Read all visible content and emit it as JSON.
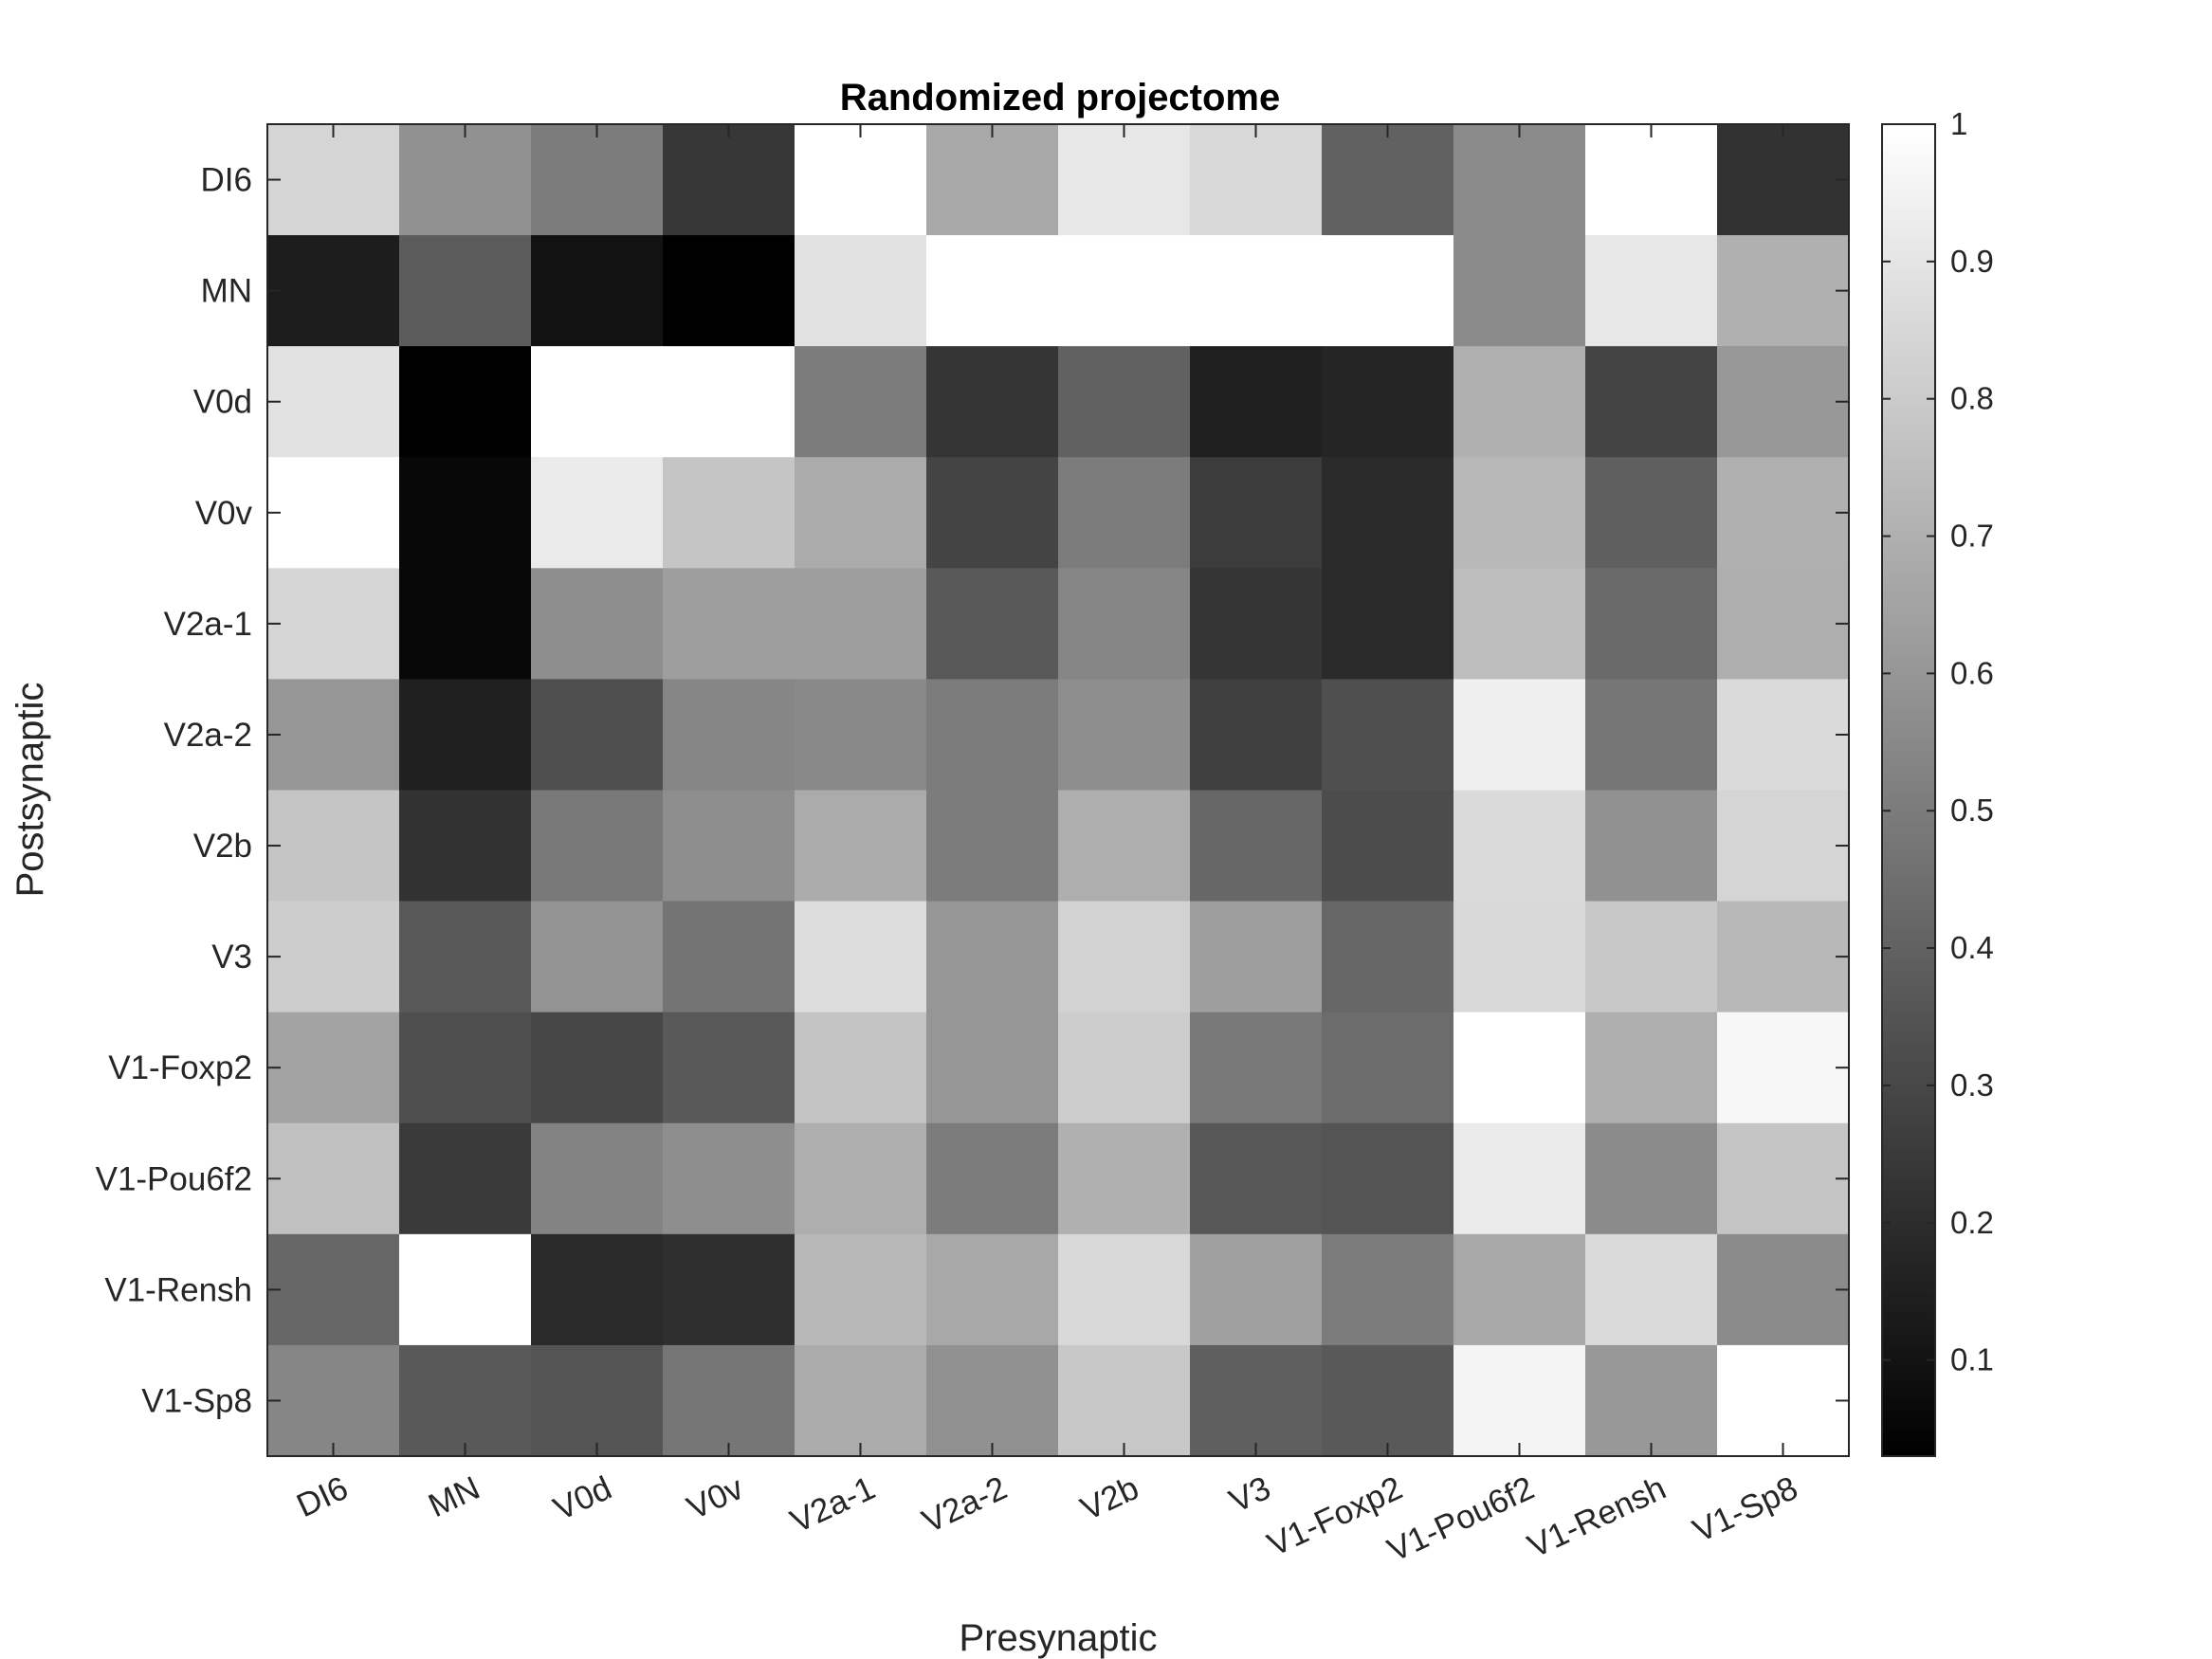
{
  "chart_data": {
    "type": "heatmap",
    "title": "Randomized projectome",
    "xlabel": "Presynaptic",
    "ylabel": "Postsynaptic",
    "x_categories": [
      "DI6",
      "MN",
      "V0d",
      "V0v",
      "V2a-1",
      "V2a-2",
      "V2b",
      "V3",
      "V1-Foxp2",
      "V1-Pou6f2",
      "V1-Rensh",
      "V1-Sp8"
    ],
    "y_categories": [
      "DI6",
      "MN",
      "V0d",
      "V0v",
      "V2a-1",
      "V2a-2",
      "V2b",
      "V3",
      "V1-Foxp2",
      "V1-Pou6f2",
      "V1-Rensh",
      "V1-Sp8"
    ],
    "values": [
      [
        0.84,
        0.58,
        0.5,
        0.24,
        1.0,
        0.67,
        0.91,
        0.85,
        0.4,
        0.56,
        1.0,
        0.22
      ],
      [
        0.14,
        0.38,
        0.1,
        0.03,
        0.89,
        1.0,
        1.0,
        1.0,
        1.0,
        0.56,
        0.91,
        0.7
      ],
      [
        0.89,
        0.03,
        1.0,
        1.0,
        0.5,
        0.23,
        0.4,
        0.15,
        0.17,
        0.7,
        0.29,
        0.61
      ],
      [
        1.0,
        0.06,
        0.92,
        0.78,
        0.68,
        0.29,
        0.5,
        0.26,
        0.19,
        0.73,
        0.39,
        0.7
      ],
      [
        0.84,
        0.06,
        0.57,
        0.63,
        0.63,
        0.37,
        0.54,
        0.23,
        0.19,
        0.75,
        0.43,
        0.69
      ],
      [
        0.6,
        0.15,
        0.33,
        0.54,
        0.55,
        0.5,
        0.57,
        0.27,
        0.33,
        0.94,
        0.48,
        0.86
      ],
      [
        0.78,
        0.22,
        0.49,
        0.57,
        0.68,
        0.5,
        0.69,
        0.42,
        0.32,
        0.86,
        0.58,
        0.84
      ],
      [
        0.81,
        0.37,
        0.59,
        0.47,
        0.87,
        0.6,
        0.83,
        0.63,
        0.42,
        0.85,
        0.79,
        0.73
      ],
      [
        0.65,
        0.33,
        0.3,
        0.37,
        0.77,
        0.6,
        0.81,
        0.49,
        0.44,
        1.0,
        0.69,
        0.97
      ],
      [
        0.76,
        0.25,
        0.53,
        0.57,
        0.69,
        0.5,
        0.7,
        0.36,
        0.35,
        0.92,
        0.56,
        0.78
      ],
      [
        0.42,
        1.0,
        0.19,
        0.21,
        0.73,
        0.67,
        0.85,
        0.64,
        0.5,
        0.67,
        0.86,
        0.56
      ],
      [
        0.54,
        0.37,
        0.35,
        0.48,
        0.68,
        0.58,
        0.79,
        0.39,
        0.37,
        0.96,
        0.61,
        1.0
      ]
    ],
    "colormap": "gray",
    "colorbar": {
      "range": [
        0.03,
        1
      ],
      "ticks": [
        0.1,
        0.2,
        0.3,
        0.4,
        0.5,
        0.6,
        0.7,
        0.8,
        0.9,
        1
      ],
      "tick_labels": [
        "0.1",
        "0.2",
        "0.3",
        "0.4",
        "0.5",
        "0.6",
        "0.7",
        "0.8",
        "0.9",
        "1"
      ]
    }
  }
}
